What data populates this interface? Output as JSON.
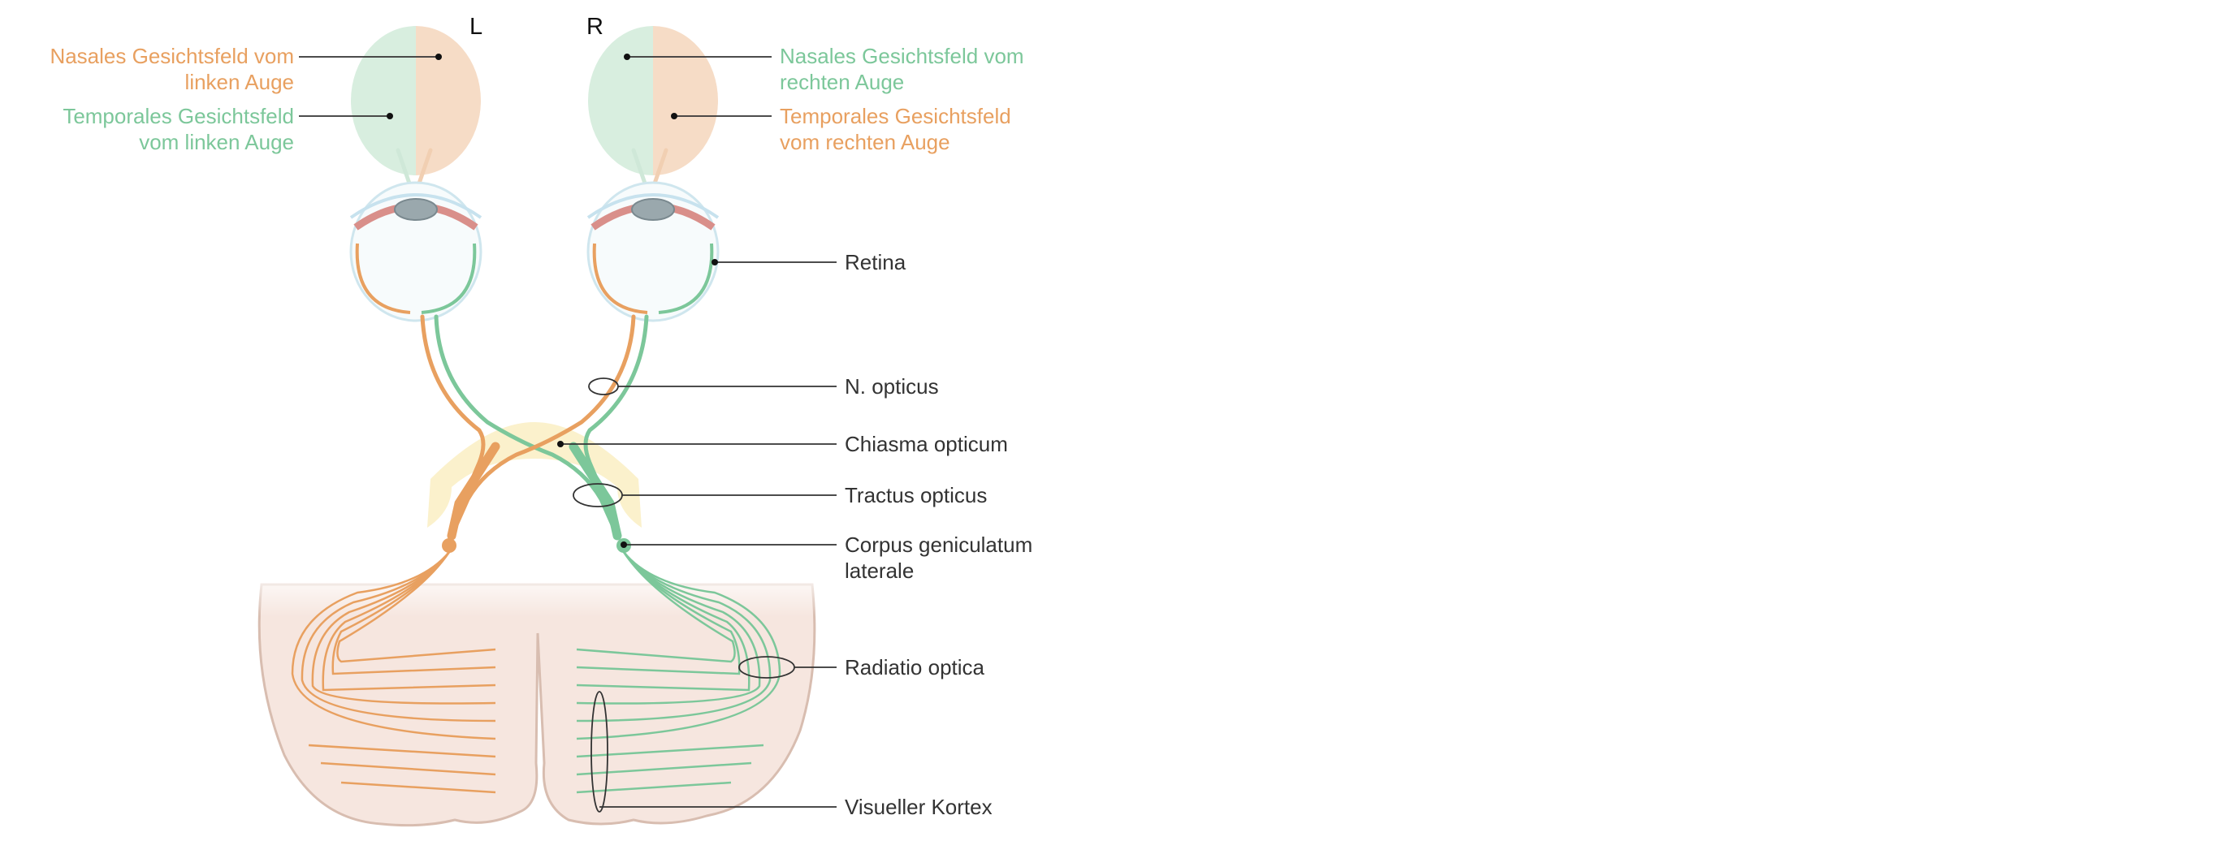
{
  "side_markers": {
    "left": "L",
    "right": "R"
  },
  "field_labels": {
    "left_nasal": [
      "Nasales Gesichtsfeld vom",
      "linken Auge"
    ],
    "left_temporal": [
      "Temporales Gesichtsfeld",
      "vom linken Auge"
    ],
    "right_nasal": [
      "Nasales Gesichtsfeld vom",
      "rechten Auge"
    ],
    "right_temporal": [
      "Temporales Gesichtsfeld",
      "vom rechten Auge"
    ]
  },
  "structure_labels": {
    "retina": "Retina",
    "n_opticus": "N. opticus",
    "chiasma": "Chiasma opticum",
    "tractus": "Tractus opticus",
    "corpus": [
      "Corpus geniculatum",
      "laterale"
    ],
    "radiatio": "Radiatio optica",
    "kortex": "Visueller Kortex"
  },
  "colors": {
    "orange_pathway": "#e8a060",
    "green_pathway": "#7cc79a",
    "nasal_field_fill": "#f6dcc6",
    "temporal_field_fill": "#d8eedf",
    "chiasma_fill": "#fbf1cc",
    "brain_fill": "#f6e6df"
  }
}
